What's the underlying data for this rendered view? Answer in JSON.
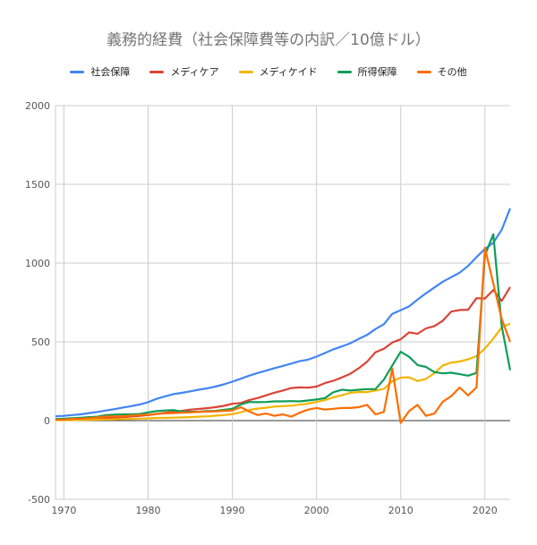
{
  "colors": {
    "social_security": "#4285f4",
    "medicare": "#db4437",
    "medicaid": "#f4b400",
    "income_security": "#0f9d58",
    "other": "#ff6d00",
    "grid": "#cccccc",
    "axis_text": "#555555"
  },
  "chart_data": {
    "type": "line",
    "title": "義務的経費（社会保障費等の内訳／10億ドル）",
    "xlabel": "",
    "ylabel": "",
    "xlim": [
      1969,
      2023
    ],
    "ylim": [
      -500,
      2000
    ],
    "xticks": [
      1970,
      1980,
      1990,
      2000,
      2010,
      2020
    ],
    "yticks": [
      -500,
      0,
      500,
      1000,
      1500,
      2000
    ],
    "grid": true,
    "legend_position": "top",
    "x": [
      1969,
      1970,
      1971,
      1972,
      1973,
      1974,
      1975,
      1976,
      1977,
      1978,
      1979,
      1980,
      1981,
      1982,
      1983,
      1984,
      1985,
      1986,
      1987,
      1988,
      1989,
      1990,
      1991,
      1992,
      1993,
      1994,
      1995,
      1996,
      1997,
      1998,
      1999,
      2000,
      2001,
      2002,
      2003,
      2004,
      2005,
      2006,
      2007,
      2008,
      2009,
      2010,
      2011,
      2012,
      2013,
      2014,
      2015,
      2016,
      2017,
      2018,
      2019,
      2020,
      2021,
      2022,
      2023
    ],
    "series": [
      {
        "name": "社会保障",
        "color_key": "social_security",
        "values": [
          27,
          30,
          35,
          40,
          48,
          55,
          64,
          73,
          83,
          92,
          102,
          117,
          138,
          154,
          168,
          176,
          186,
          196,
          205,
          216,
          230,
          247,
          266,
          285,
          302,
          317,
          333,
          347,
          362,
          377,
          387,
          406,
          429,
          452,
          471,
          491,
          518,
          544,
          581,
          612,
          678,
          701,
          725,
          768,
          808,
          845,
          882,
          910,
          939,
          982,
          1038,
          1090,
          1129,
          1212,
          1348
        ]
      },
      {
        "name": "メディケア",
        "color_key": "medicare",
        "values": [
          6,
          7,
          8,
          9,
          10,
          13,
          16,
          19,
          22,
          26,
          30,
          35,
          42,
          50,
          56,
          62,
          70,
          74,
          79,
          85,
          94,
          107,
          112,
          130,
          143,
          160,
          177,
          191,
          207,
          211,
          209,
          216,
          238,
          253,
          274,
          297,
          332,
          374,
          434,
          456,
          496,
          516,
          560,
          551,
          585,
          600,
          634,
          692,
          702,
          704,
          777,
          775,
          829,
          760,
          848
        ]
      },
      {
        "name": "メディケイド",
        "color_key": "medicaid",
        "values": [
          3,
          3,
          3,
          4,
          5,
          6,
          7,
          8,
          10,
          11,
          13,
          14,
          17,
          17,
          19,
          20,
          22,
          25,
          27,
          31,
          35,
          41,
          53,
          68,
          76,
          82,
          89,
          92,
          95,
          101,
          108,
          118,
          130,
          148,
          161,
          176,
          182,
          181,
          191,
          201,
          250,
          273,
          275,
          251,
          265,
          301,
          350,
          368,
          375,
          389,
          409,
          458,
          521,
          592,
          616
        ]
      },
      {
        "name": "所得保障",
        "color_key": "income_security",
        "values": [
          10,
          12,
          15,
          18,
          22,
          25,
          35,
          38,
          40,
          40,
          42,
          52,
          60,
          64,
          67,
          56,
          56,
          56,
          60,
          62,
          68,
          75,
          102,
          118,
          117,
          118,
          122,
          122,
          124,
          122,
          128,
          134,
          143,
          180,
          196,
          191,
          196,
          200,
          200,
          260,
          350,
          437,
          405,
          353,
          341,
          308,
          300,
          304,
          295,
          285,
          303,
          1050,
          1183,
          600,
          320
        ]
      },
      {
        "name": "その他",
        "color_key": "other",
        "values": [
          5,
          7,
          10,
          12,
          15,
          20,
          26,
          26,
          28,
          32,
          36,
          38,
          42,
          46,
          48,
          50,
          52,
          55,
          57,
          59,
          62,
          65,
          85,
          58,
          35,
          45,
          30,
          40,
          25,
          50,
          70,
          80,
          70,
          75,
          80,
          80,
          85,
          100,
          40,
          55,
          330,
          -15,
          60,
          100,
          30,
          45,
          120,
          155,
          210,
          160,
          210,
          1097,
          870,
          645,
          500
        ]
      }
    ]
  }
}
